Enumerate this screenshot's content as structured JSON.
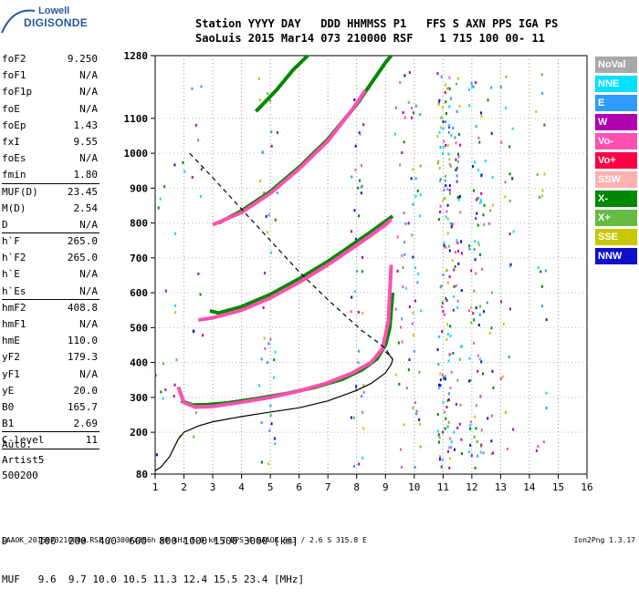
{
  "logo": {
    "line1": "Lowell",
    "line2": "DIGISONDE"
  },
  "header": {
    "line1": "Station YYYY DAY   DDD HHMMSS P1   FFS S AXN PPS IGA PS",
    "line2": "SaoLuis 2015 Mar14 073 210000 RSF    1 715 100 00- 11"
  },
  "params": [
    {
      "k": "foF2",
      "v": "9.250"
    },
    {
      "k": "foF1",
      "v": "N/A"
    },
    {
      "k": "foF1p",
      "v": "N/A"
    },
    {
      "k": "foE",
      "v": "N/A"
    },
    {
      "k": "foEp",
      "v": "1.43"
    },
    {
      "k": "fxI",
      "v": "9.55"
    },
    {
      "k": "foEs",
      "v": "N/A"
    },
    {
      "k": "fmin",
      "v": "1.80",
      "sep": true
    },
    {
      "k": "MUF(D)",
      "v": "23.45"
    },
    {
      "k": "M(D)",
      "v": "2.54"
    },
    {
      "k": "D",
      "v": "N/A",
      "sep": true
    },
    {
      "k": "h`F",
      "v": "265.0"
    },
    {
      "k": "h`F2",
      "v": "265.0"
    },
    {
      "k": "h`E",
      "v": "N/A"
    },
    {
      "k": "h`Es",
      "v": "N/A",
      "sep": true
    },
    {
      "k": "hmF2",
      "v": "408.8"
    },
    {
      "k": "hmF1",
      "v": "N/A"
    },
    {
      "k": "hmE",
      "v": "110.0"
    },
    {
      "k": "yF2",
      "v": "179.3"
    },
    {
      "k": "yF1",
      "v": "N/A"
    },
    {
      "k": "yE",
      "v": "20.0"
    },
    {
      "k": "B0",
      "v": "165.7"
    },
    {
      "k": "B1",
      "v": "2.69",
      "sep": true
    },
    {
      "k": "C-level",
      "v": "11",
      "sep": true
    }
  ],
  "auto": [
    "Auto:",
    "Artist5",
    "500200"
  ],
  "legend": [
    {
      "label": "NoVal",
      "color": "#a8a8a8"
    },
    {
      "label": "NNE",
      "color": "#00e0ff"
    },
    {
      "label": "E",
      "color": "#2f9bff"
    },
    {
      "label": "W",
      "color": "#b000b0"
    },
    {
      "label": "Vo-",
      "color": "#ff50b0"
    },
    {
      "label": "Vo+",
      "color": "#ff0044"
    },
    {
      "label": "SSW",
      "color": "#ffb0b0"
    },
    {
      "label": "X-",
      "color": "#008800"
    },
    {
      "label": "X+",
      "color": "#66bb44"
    },
    {
      "label": "SSE",
      "color": "#c8c800"
    },
    {
      "label": "NNW",
      "color": "#1010cc"
    }
  ],
  "table": {
    "line1": "D     100  200  400  600  800 1000 1500 3000 [km]",
    "line2": "MUF   9.6  9.7 10.0 10.5 11.3 12.4 15.5 23.4 [MHz]"
  },
  "footer": "SAAOK_2015073210000.RSF / 300fx256h 50 kHz 5.0 km / DPS-4 SAAOK 903 / 2.6 S 315.8 E",
  "version": "Ion2Png 1.3.17",
  "chart_data": {
    "type": "scatter",
    "xlim": [
      1,
      16
    ],
    "ylim": [
      80,
      1280
    ],
    "xticks": [
      "1",
      "2",
      "3",
      "4",
      "5",
      "6",
      "7",
      "8",
      "9",
      "10",
      "11",
      "12",
      "13",
      "14",
      "15",
      "16"
    ],
    "yticks": [
      "80",
      "200",
      "300",
      "400",
      "500",
      "600",
      "700",
      "800",
      "900",
      "1000",
      "1100",
      "1280"
    ],
    "series": [
      {
        "mode": "o-trace-1",
        "color": "#008800",
        "x": [
          1.9,
          2.3,
          2.8,
          3.5,
          4.5,
          5.5,
          6.5,
          7.5,
          8.2,
          8.7,
          9.0,
          9.15,
          9.25
        ],
        "y": [
          290,
          278,
          279,
          284,
          296,
          310,
          328,
          352,
          380,
          410,
          450,
          500,
          600
        ]
      },
      {
        "mode": "o-trace-1-pink",
        "color": "#ff50b0",
        "x": [
          1.8,
          2.0,
          2.4,
          3.0,
          4.0,
          5.0,
          6.0,
          7.0,
          7.8,
          8.5,
          8.9,
          9.1,
          9.2
        ],
        "y": [
          330,
          285,
          272,
          274,
          286,
          300,
          318,
          342,
          368,
          400,
          440,
          520,
          680
        ]
      },
      {
        "mode": "o-trace-2",
        "color": "#008800",
        "x": [
          2.9,
          3.2,
          4.0,
          5.0,
          6.0,
          7.0,
          7.8,
          8.5,
          9.0,
          9.25
        ],
        "y": [
          548,
          542,
          560,
          595,
          640,
          690,
          735,
          775,
          805,
          820
        ]
      },
      {
        "mode": "o-trace-2-pink",
        "color": "#ff50b0",
        "x": [
          2.5,
          3.0,
          4.0,
          5.0,
          6.0,
          7.0,
          7.8,
          8.5,
          9.0,
          9.2
        ],
        "y": [
          522,
          528,
          550,
          585,
          630,
          680,
          725,
          765,
          795,
          810
        ]
      },
      {
        "mode": "o-trace-3",
        "color": "#008800",
        "x": [
          3.2,
          4.0,
          5.0,
          6.0,
          7.0,
          8.0,
          8.5,
          9.0,
          9.2
        ],
        "y": [
          800,
          835,
          890,
          960,
          1040,
          1140,
          1200,
          1260,
          1280
        ]
      },
      {
        "mode": "o-trace-3-pink",
        "color": "#ff50b0",
        "x": [
          3.0,
          4.0,
          5.0,
          6.0,
          7.0,
          7.8,
          8.3
        ],
        "y": [
          795,
          830,
          885,
          955,
          1035,
          1120,
          1180
        ]
      },
      {
        "mode": "upper-trace",
        "color": "#008800",
        "x": [
          4.5,
          5.2,
          5.8,
          6.3
        ],
        "y": [
          1120,
          1180,
          1240,
          1280
        ]
      },
      {
        "mode": "profile",
        "color": "#000000",
        "x": [
          1.0,
          1.2,
          1.5,
          1.8,
          2.0,
          2.5,
          3.0,
          4.0,
          5.0,
          6.0,
          7.0,
          8.0,
          8.5,
          9.0,
          9.2,
          9.25,
          9.15,
          9.0
        ],
        "y": [
          90,
          100,
          130,
          180,
          200,
          218,
          230,
          245,
          258,
          270,
          290,
          320,
          340,
          370,
          395,
          409,
          420,
          430
        ]
      },
      {
        "mode": "muf-curve",
        "color": "#000000",
        "x": [
          2.2,
          3.0,
          4.0,
          5.0,
          6.0,
          7.0,
          7.6,
          8.2,
          8.7,
          9.0,
          9.25
        ],
        "y": [
          1000,
          930,
          840,
          750,
          660,
          580,
          535,
          490,
          460,
          440,
          409
        ]
      }
    ]
  }
}
